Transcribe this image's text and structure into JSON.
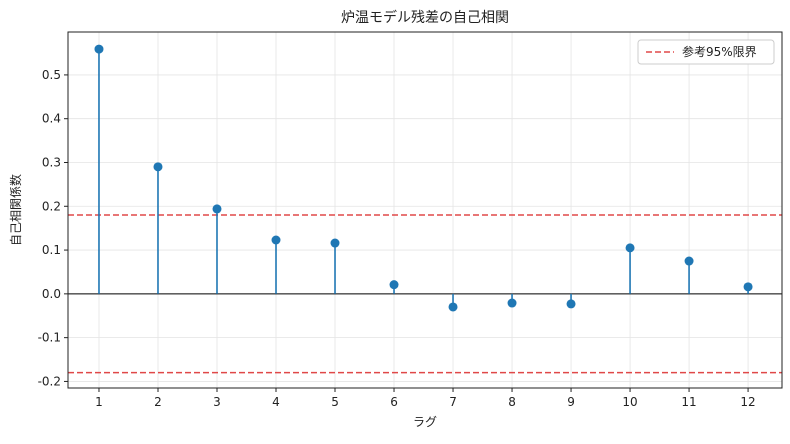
{
  "chart_data": {
    "type": "stem",
    "title": "炉温モデル残差の自己相関",
    "x_label": "ラグ",
    "y_label": "自己相関係数",
    "x": [
      1,
      2,
      3,
      4,
      5,
      6,
      7,
      8,
      9,
      10,
      11,
      12
    ],
    "series": [
      {
        "name": "自己相関",
        "color": "#1f77b4",
        "values": [
          0.559,
          0.29,
          0.194,
          0.123,
          0.116,
          0.021,
          -0.03,
          -0.021,
          -0.023,
          0.105,
          0.075,
          0.016
        ]
      }
    ],
    "reference_lines": {
      "name": "参考95%限界",
      "color": "#e04848",
      "values": [
        0.18,
        -0.18
      ]
    },
    "xlim": [
      0.475,
      12.575
    ],
    "ylim": [
      -0.215,
      0.598
    ],
    "xticks": [
      1,
      2,
      3,
      4,
      5,
      6,
      7,
      8,
      9,
      10,
      11,
      12
    ],
    "yticks": [
      -0.2,
      -0.1,
      {
        "value": 0,
        "label": "0.0"
      },
      0.1,
      0.2,
      0.3,
      0.4,
      0.5
    ],
    "grid": true,
    "legend_position": "upper-right"
  }
}
